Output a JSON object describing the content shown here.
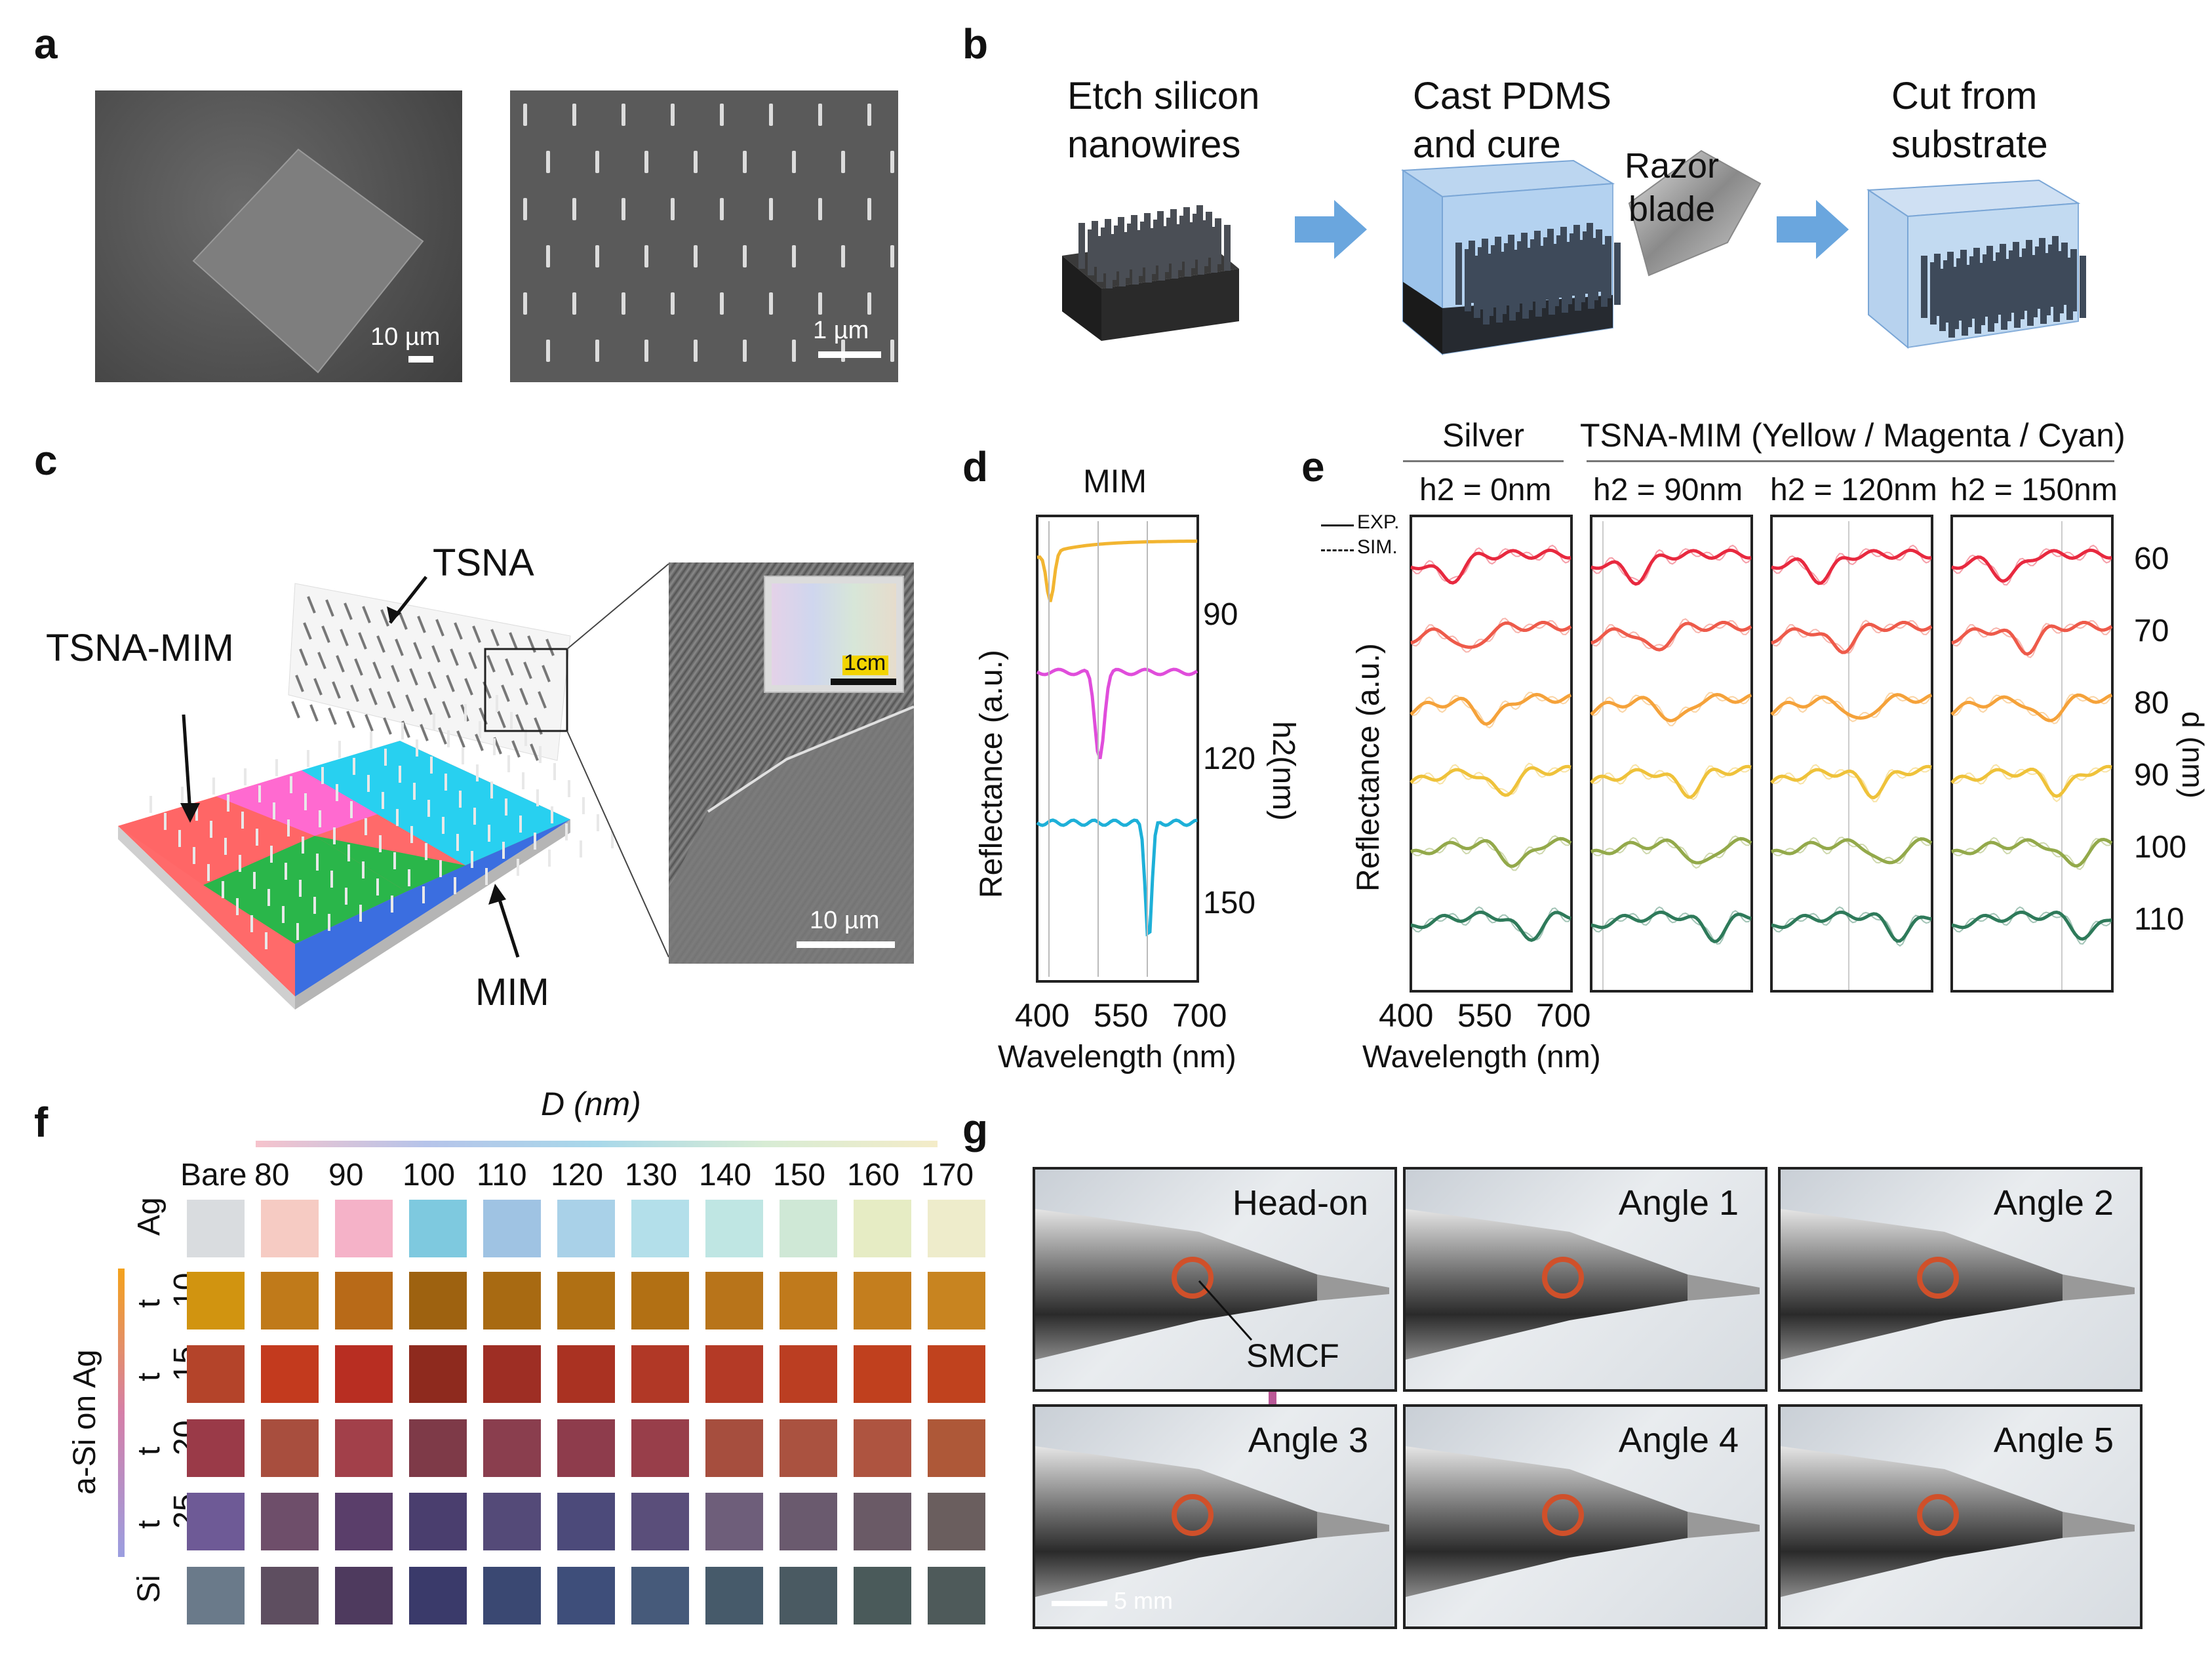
{
  "panel_letters": [
    "a",
    "b",
    "c",
    "d",
    "e",
    "f",
    "g"
  ],
  "a": {
    "scale1": "10 µm",
    "scale2": "1 µm"
  },
  "b": {
    "step1": "Etch silicon\nnanowires",
    "step1_l1": "Etch silicon",
    "step1_l2": "nanowires",
    "step2_l1": "Cast PDMS",
    "step2_l2": "and cure",
    "razor_l1": "Razor",
    "razor_l2": "blade",
    "step3_l1": "Cut from",
    "step3_l2": "substrate"
  },
  "c": {
    "tsna": "TSNA",
    "tsna_mim": "TSNA-MIM",
    "mim": "MIM",
    "inset_scale": "1cm",
    "sem_scale": "10 µm"
  },
  "d": {
    "title": "MIM",
    "ylabel": "Reflectance (a.u.)",
    "right_label": "h2(nm)",
    "xlabel": "Wavelength (nm)",
    "xticks": [
      "400",
      "550",
      "700"
    ],
    "h2_vals": [
      "90",
      "120",
      "150"
    ]
  },
  "e": {
    "header_silver": "Silver",
    "header_tsna": "TSNA-MIM (Yellow / Magenta / Cyan)",
    "cols": [
      "h2 = 0nm",
      "h2 = 90nm",
      "h2 = 120nm",
      "h2 = 150nm"
    ],
    "legend_exp": "EXP.",
    "legend_sim": "SIM.",
    "ylabel": "Reflectance (a.u.)",
    "right_label": "d (nm)",
    "d_vals": [
      "60",
      "70",
      "80",
      "90",
      "100",
      "110"
    ],
    "xlabel": "Wavelength (nm)",
    "xticks": [
      "400",
      "550",
      "700"
    ],
    "row_colors": [
      "#e8293f",
      "#ee5a4a",
      "#f5a23a",
      "#efc23a",
      "#93a94a",
      "#2e7a5a"
    ]
  },
  "f": {
    "title": "D (nm)",
    "cols": [
      "Bare",
      "80",
      "90",
      "100",
      "110",
      "120",
      "130",
      "140",
      "150",
      "160",
      "170"
    ],
    "rows": [
      "Ag",
      "t 10",
      "t 15",
      "t 20",
      "t 25",
      "Si"
    ],
    "side_label": "a-Si on Ag",
    "colors": [
      [
        "#d9dcdf",
        "#f6cbc3",
        "#f5b2c8",
        "#7ec9df",
        "#9fc3e3",
        "#a9d1e8",
        "#b3dfea",
        "#bfe6e3",
        "#cfe8d6",
        "#e6ecc4",
        "#eeeccb"
      ],
      [
        "#d19410",
        "#c07a1a",
        "#b86a18",
        "#9e6210",
        "#a86a12",
        "#b07014",
        "#b27014",
        "#b8741a",
        "#c07a1c",
        "#c47e1e",
        "#c88420"
      ],
      [
        "#b4442a",
        "#c33a1e",
        "#b82e22",
        "#8e2a1e",
        "#9e2e24",
        "#aa3222",
        "#b13826",
        "#b43a26",
        "#bb3e22",
        "#c0401e",
        "#c0421e"
      ],
      [
        "#9a3a48",
        "#a84e3e",
        "#a2404a",
        "#7e3a48",
        "#8a3e4e",
        "#8e3c4c",
        "#983e4a",
        "#a64e3e",
        "#aa5240",
        "#ae5440",
        "#ae5838"
      ],
      [
        "#6e5a96",
        "#6e4e6a",
        "#5a3e6a",
        "#4a3e6e",
        "#544a78",
        "#4c4a7a",
        "#5a4e7a",
        "#6e5e7a",
        "#6a5a6e",
        "#6a5a66",
        "#6a5e5e"
      ],
      [
        "#6a7a8a",
        "#5e4e60",
        "#4e3a5e",
        "#3a3a6a",
        "#3a4872",
        "#3e4e7a",
        "#465a7a",
        "#465a6a",
        "#4a5a62",
        "#4a5a5a",
        "#4e5a5a"
      ]
    ]
  },
  "g": {
    "photos": [
      "Head-on",
      "Angle 1",
      "Angle 2",
      "Angle 3",
      "Angle 4",
      "Angle 5"
    ],
    "smcf": "SMCF",
    "scale": "5 mm"
  }
}
